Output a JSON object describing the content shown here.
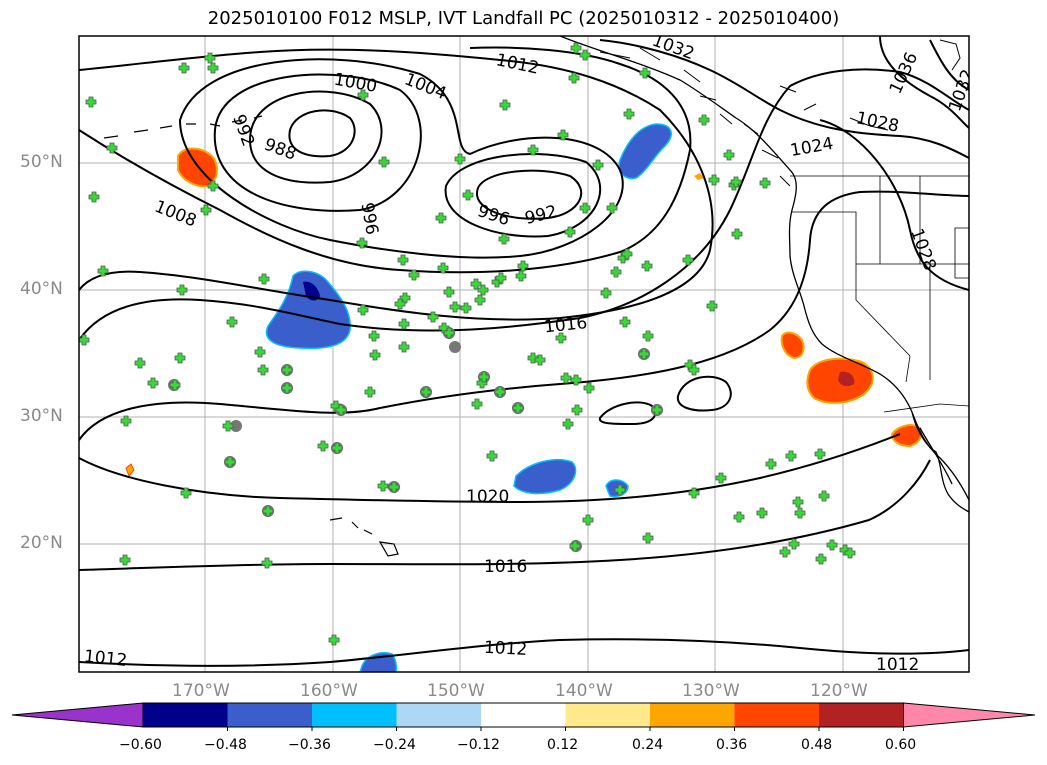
{
  "title": "2025010100 F012 MSLP, IVT Landfall PC (2025010312 - 2025010400)",
  "map": {
    "lat_labels": [
      "50°N",
      "40°N",
      "30°N",
      "20°N"
    ],
    "lon_labels": [
      "170°W",
      "160°W",
      "150°W",
      "140°W",
      "130°W",
      "120°W"
    ],
    "gridline_color": "#b0b0b0",
    "land_outline_color": "#000000",
    "station_marker_color": "#33dd33",
    "station_ring_color": "#777777",
    "isobar_labels": [
      "1032",
      "1036",
      "1032",
      "1012",
      "1000",
      "1004",
      "992",
      "988",
      "996",
      "996",
      "992",
      "1008",
      "1024",
      "1028",
      "1028",
      "1016",
      "1020",
      "1016",
      "1012",
      "1012",
      "1012"
    ]
  },
  "colorbar": {
    "colors": [
      "#9933cc",
      "#00008b",
      "#3a5fcd",
      "#00bfff",
      "#add8f5",
      "#ffffff",
      "#ffe98a",
      "#ffa500",
      "#ff4500",
      "#b22222",
      "#ff88aa"
    ],
    "tick_labels": [
      "−0.60",
      "−0.48",
      "−0.36",
      "−0.24",
      "−0.12",
      "0.12",
      "0.24",
      "0.36",
      "0.48",
      "0.60"
    ]
  }
}
